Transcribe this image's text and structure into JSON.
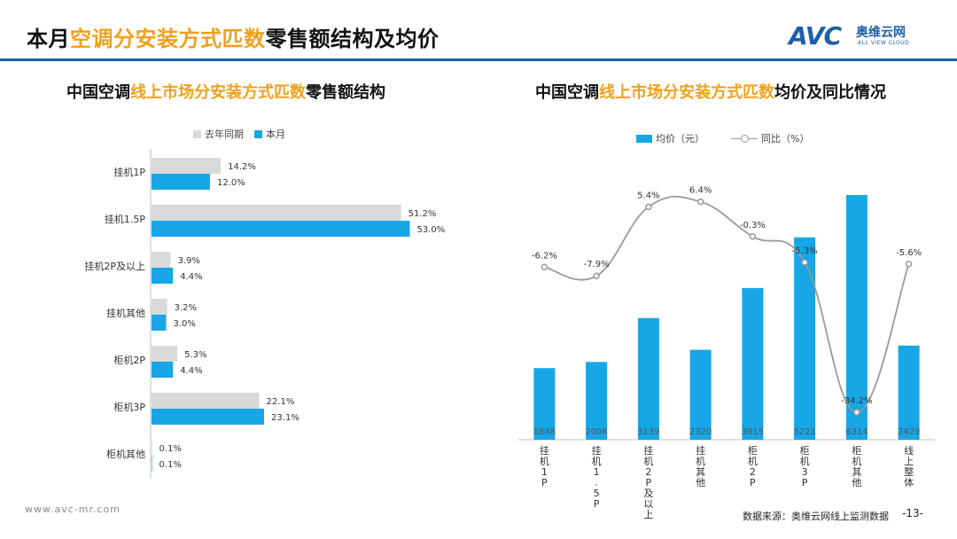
{
  "header": {
    "title_pre": "本月",
    "title_hl": "空调分安装方式匹数",
    "title_post": "零售额结构及均价",
    "logo_text": "AVC",
    "logo_cn": "奥维云网",
    "logo_en": "ALL VIEW CLOUD"
  },
  "left_chart": {
    "title_pre": "中国空调",
    "title_hl": "线上市场分安装方式匹数",
    "title_post": "零售额结构",
    "legend_last_year": "去年同期",
    "legend_this_month": "本月"
  },
  "right_chart": {
    "title_pre": "中国空调",
    "title_hl": "线上市场分安装方式匹数",
    "title_post": "均价及同比情况",
    "legend_price": "均价（元）",
    "legend_yoy": "同比（%）"
  },
  "footer": {
    "website": "www.avc-mr.com",
    "source": "数据来源：奥维云网线上监测数据",
    "page_number": "-13-"
  },
  "colors": {
    "accent": "#f0a01e",
    "brand": "#1e5fa8",
    "this_month": "#17a6e6",
    "last_year": "#d9d9d9",
    "line": "#999999"
  },
  "chart_data": [
    {
      "type": "bar",
      "orientation": "horizontal",
      "categories": [
        "挂机1P",
        "挂机1.5P",
        "挂机2P及以上",
        "挂机其他",
        "柜机2P",
        "柜机3P",
        "柜机其他"
      ],
      "series": [
        {
          "name": "去年同期",
          "values": [
            14.2,
            51.2,
            3.9,
            3.2,
            5.3,
            22.1,
            0.1
          ],
          "labels": [
            "14.2%",
            "51.2%",
            "3.9%",
            "3.2%",
            "5.3%",
            "22.1%",
            "0.1%"
          ]
        },
        {
          "name": "本月",
          "values": [
            12.0,
            53.0,
            4.4,
            3.0,
            4.4,
            23.1,
            0.1
          ],
          "labels": [
            "12.0%",
            "53.0%",
            "4.4%",
            "3.0%",
            "4.4%",
            "23.1%",
            "0.1%"
          ]
        }
      ],
      "xlim": [
        0,
        60
      ],
      "legend_position": "top"
    },
    {
      "type": "bar",
      "categories": [
        "挂机1P",
        "挂机1.5P",
        "挂机2P及以上",
        "挂机其他",
        "柜机2P",
        "柜机3P",
        "柜机其他",
        "线上整体"
      ],
      "series": [
        {
          "name": "均价（元）",
          "type": "bar",
          "values": [
            1848,
            2006,
            3139,
            2320,
            3915,
            5221,
            6314,
            2429
          ],
          "labels": [
            "1848",
            "2006",
            "3139",
            "2320",
            "3915",
            "5221",
            "6314",
            "2429"
          ]
        },
        {
          "name": "同比（%）",
          "type": "line",
          "values": [
            -6.2,
            -7.9,
            5.4,
            6.4,
            -0.3,
            -5.3,
            -34.2,
            -5.6
          ],
          "labels": [
            "-6.2%",
            "-7.9%",
            "5.4%",
            "6.4%",
            "-0.3%",
            "-5.3%",
            "-34.2%",
            "-5.6%"
          ]
        }
      ],
      "ylim_bar": [
        0,
        6314
      ],
      "legend_position": "top"
    }
  ]
}
